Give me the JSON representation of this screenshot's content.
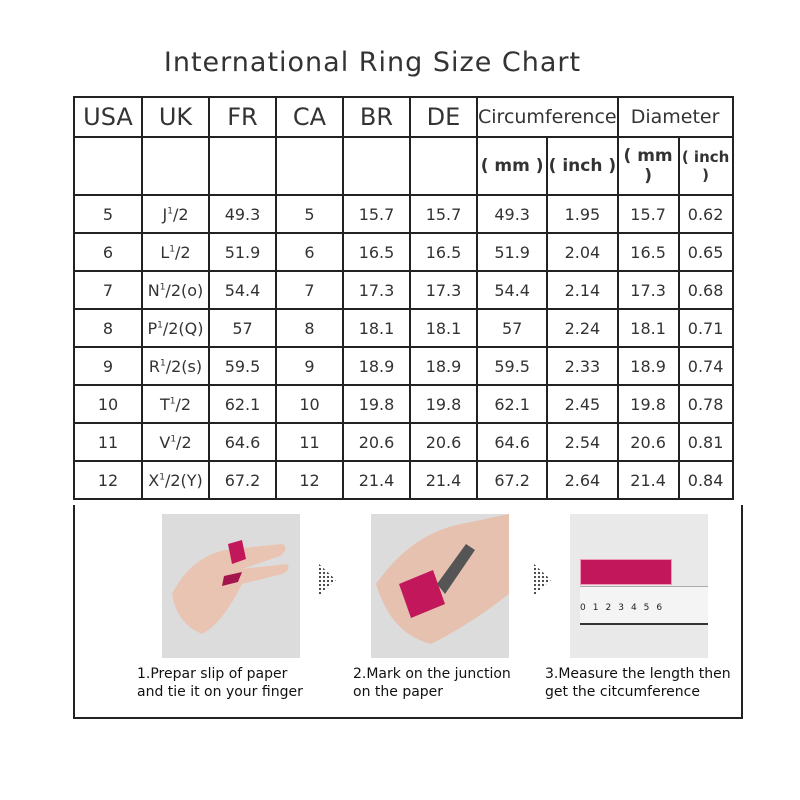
{
  "title": "International Ring Size Chart",
  "headers": [
    "USA",
    "UK",
    "FR",
    "CA",
    "BR",
    "DE",
    "Circumference",
    "Diameter"
  ],
  "subheaders": [
    "( mm )",
    "( inch )",
    "( mm )",
    "( inch )"
  ],
  "rows": [
    {
      "usa": "5",
      "uk": {
        "l": "J",
        "s": "1",
        "r": "/2"
      },
      "fr": "49.3",
      "ca": "5",
      "br": "15.7",
      "de": "15.7",
      "cmm": "49.3",
      "cin": "1.95",
      "dmm": "15.7",
      "din": "0.62"
    },
    {
      "usa": "6",
      "uk": {
        "l": "L",
        "s": "1",
        "r": "/2"
      },
      "fr": "51.9",
      "ca": "6",
      "br": "16.5",
      "de": "16.5",
      "cmm": "51.9",
      "cin": "2.04",
      "dmm": "16.5",
      "din": "0.65"
    },
    {
      "usa": "7",
      "uk": {
        "l": "N",
        "s": "1",
        "r": "/2(o)"
      },
      "fr": "54.4",
      "ca": "7",
      "br": "17.3",
      "de": "17.3",
      "cmm": "54.4",
      "cin": "2.14",
      "dmm": "17.3",
      "din": "0.68"
    },
    {
      "usa": "8",
      "uk": {
        "l": "P",
        "s": "1",
        "r": "/2(Q)"
      },
      "fr": "57",
      "ca": "8",
      "br": "18.1",
      "de": "18.1",
      "cmm": "57",
      "cin": "2.24",
      "dmm": "18.1",
      "din": "0.71"
    },
    {
      "usa": "9",
      "uk": {
        "l": "R",
        "s": "1",
        "r": "/2(s)"
      },
      "fr": "59.5",
      "ca": "9",
      "br": "18.9",
      "de": "18.9",
      "cmm": "59.5",
      "cin": "2.33",
      "dmm": "18.9",
      "din": "0.74"
    },
    {
      "usa": "10",
      "uk": {
        "l": "T",
        "s": "1",
        "r": "/2"
      },
      "fr": "62.1",
      "ca": "10",
      "br": "19.8",
      "de": "19.8",
      "cmm": "62.1",
      "cin": "2.45",
      "dmm": "19.8",
      "din": "0.78"
    },
    {
      "usa": "11",
      "uk": {
        "l": "V",
        "s": "1",
        "r": "/2"
      },
      "fr": "64.6",
      "ca": "11",
      "br": "20.6",
      "de": "20.6",
      "cmm": "64.6",
      "cin": "2.54",
      "dmm": "20.6",
      "din": "0.81"
    },
    {
      "usa": "12",
      "uk": {
        "l": "X",
        "s": "1",
        "r": "/2(Y)"
      },
      "fr": "67.2",
      "ca": "12",
      "br": "21.4",
      "de": "21.4",
      "cmm": "67.2",
      "cin": "2.64",
      "dmm": "21.4",
      "din": "0.84"
    }
  ],
  "steps": [
    {
      "line1": "1.Prepar slip of paper",
      "line2": "and tie it on your finger"
    },
    {
      "line1": "2.Mark on the junction",
      "line2": "on the paper"
    },
    {
      "line1": "3.Measure the length then",
      "line2": "get the citcumference"
    }
  ],
  "ruler_labels": [
    "0",
    "1",
    "2",
    "3",
    "4",
    "5",
    "6"
  ],
  "colors": {
    "paper": "#c2185b",
    "border": "#222222"
  }
}
